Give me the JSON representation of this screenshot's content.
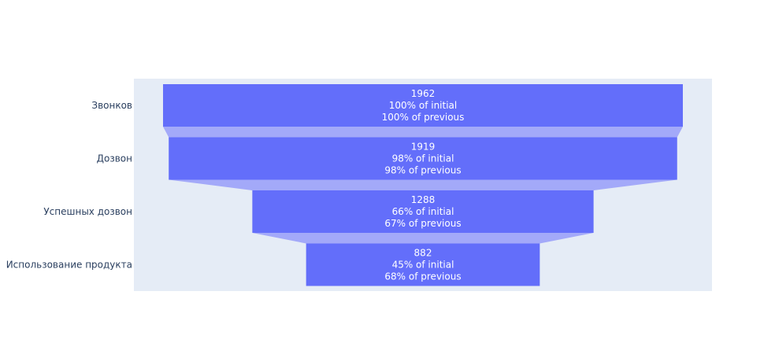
{
  "chart_data": {
    "type": "funnel",
    "categories": [
      "Звонков",
      "Дозвон",
      "Успешных дозвон",
      "Использование продукта"
    ],
    "values": [
      1962,
      1919,
      1288,
      882
    ],
    "percent_initial": [
      "100% of initial",
      "98% of initial",
      "66% of initial",
      "45% of initial"
    ],
    "percent_previous": [
      "100% of previous",
      "98% of previous",
      "67% of previous",
      "68% of previous"
    ],
    "colors": {
      "plot_bg": "#e5ecf6",
      "bar": "#636efa",
      "connector": "#a3a9f9",
      "label_text": "#2a3f5f",
      "bar_text": "#ffffff"
    }
  }
}
